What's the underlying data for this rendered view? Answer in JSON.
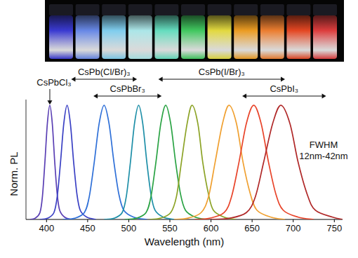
{
  "chart_data": {
    "type": "line",
    "xlabel": "Wavelength (nm)",
    "ylabel": "Norm. PL",
    "xlim": [
      375,
      760
    ],
    "xticks": [
      400,
      450,
      500,
      550,
      600,
      650,
      700,
      750
    ],
    "ylim": [
      0,
      1.05
    ],
    "tick_labels": "x",
    "grid": false,
    "series": [
      {
        "color": "#5a3fb4",
        "x": [
          380,
          386,
          392,
          395,
          398,
          401,
          404,
          407,
          410,
          413,
          416,
          422,
          430
        ],
        "values": [
          0,
          0.01,
          0.06,
          0.2,
          0.5,
          0.84,
          1,
          0.84,
          0.5,
          0.22,
          0.08,
          0.02,
          0
        ]
      },
      {
        "color": "#3a40c4",
        "x": [
          392,
          401,
          409,
          413,
          417,
          421,
          425,
          429,
          433,
          437,
          441,
          449,
          460
        ],
        "values": [
          0,
          0.01,
          0.06,
          0.2,
          0.5,
          0.84,
          1,
          0.84,
          0.5,
          0.22,
          0.08,
          0.02,
          0
        ]
      },
      {
        "color": "#2f70d8",
        "x": [
          420,
          434,
          446,
          452,
          458,
          464,
          470,
          476,
          482,
          488,
          494,
          506,
          522
        ],
        "values": [
          0,
          0.01,
          0.06,
          0.2,
          0.5,
          0.84,
          1,
          0.84,
          0.5,
          0.22,
          0.08,
          0.02,
          0
        ]
      },
      {
        "color": "#1e8fa8",
        "x": [
          470,
          482,
          492,
          497,
          502,
          507,
          512,
          517,
          522,
          527,
          532,
          542,
          555
        ],
        "values": [
          0,
          0.01,
          0.06,
          0.2,
          0.5,
          0.84,
          1,
          0.84,
          0.5,
          0.22,
          0.08,
          0.02,
          0
        ]
      },
      {
        "color": "#2aa344",
        "x": [
          495,
          509,
          521,
          527,
          533,
          539,
          545,
          551,
          557,
          563,
          569,
          581,
          595
        ],
        "values": [
          0,
          0.01,
          0.06,
          0.2,
          0.5,
          0.84,
          1,
          0.84,
          0.5,
          0.22,
          0.08,
          0.02,
          0
        ]
      },
      {
        "color": "#8ca326",
        "x": [
          525,
          538,
          551,
          558,
          564,
          571,
          577,
          584,
          590,
          597,
          603,
          616,
          630
        ],
        "values": [
          0,
          0.01,
          0.06,
          0.2,
          0.5,
          0.84,
          1,
          0.84,
          0.5,
          0.22,
          0.08,
          0.02,
          0
        ]
      },
      {
        "color": "#f0a030",
        "x": [
          555,
          571,
          588,
          597,
          605,
          614,
          622,
          631,
          639,
          648,
          656,
          673,
          690
        ],
        "values": [
          0,
          0.01,
          0.06,
          0.2,
          0.5,
          0.84,
          1,
          0.84,
          0.5,
          0.22,
          0.08,
          0.02,
          0
        ]
      },
      {
        "color": "#e8442a",
        "x": [
          580,
          598,
          616,
          625,
          634,
          643,
          652,
          661,
          670,
          679,
          688,
          706,
          725
        ],
        "values": [
          0,
          0.01,
          0.06,
          0.2,
          0.5,
          0.84,
          1,
          0.84,
          0.5,
          0.22,
          0.08,
          0.02,
          0
        ]
      },
      {
        "color": "#b02828",
        "x": [
          600,
          622,
          643,
          654,
          664,
          675,
          685,
          696,
          706,
          717,
          727,
          748,
          760
        ],
        "values": [
          0,
          0.01,
          0.06,
          0.2,
          0.5,
          0.84,
          1,
          0.84,
          0.5,
          0.22,
          0.08,
          0.02,
          0
        ]
      }
    ],
    "annotations": [
      {
        "text": "CsPbCl₃",
        "x": 404
      },
      {
        "text": "CsPb(Cl/Br)₃",
        "range": [
          430,
          510
        ]
      },
      {
        "text": "CsPbBr₃",
        "range": [
          457,
          540
        ]
      },
      {
        "text": "CsPb(I/Br)₃",
        "range": [
          536,
          690
        ]
      },
      {
        "text": "CsPbI₃",
        "range": [
          638,
          740
        ]
      },
      {
        "text": "FWHM"
      },
      {
        "text": "12nm-42nm"
      }
    ]
  }
}
